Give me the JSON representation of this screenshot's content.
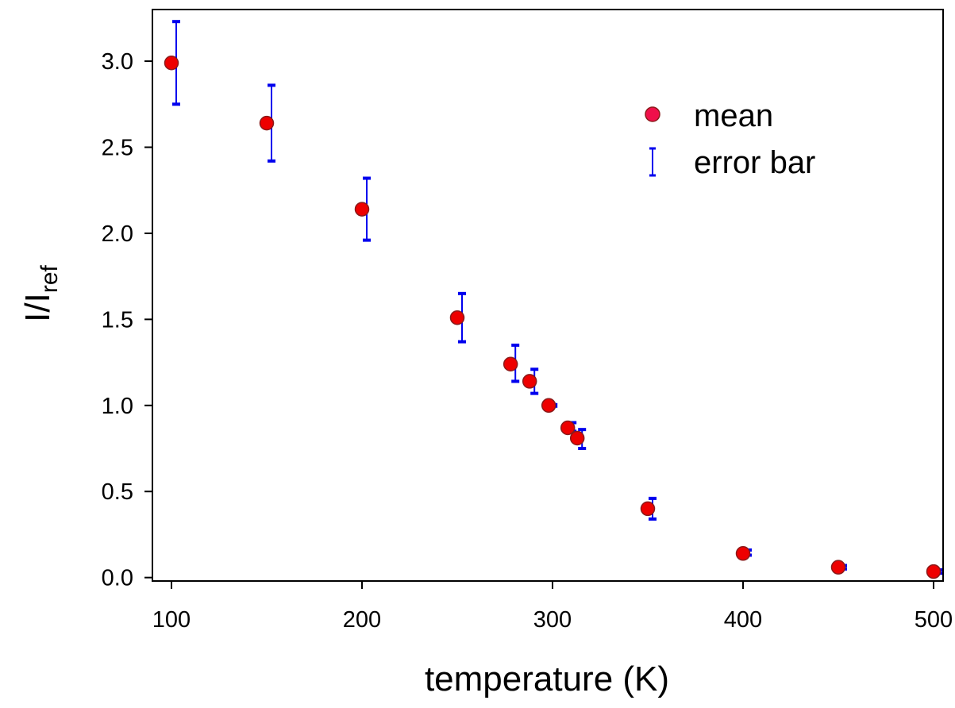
{
  "chart_data": {
    "type": "scatter",
    "xlabel": "temperature (K)",
    "ylabel": {
      "main": "I/I",
      "subscript": "ref"
    },
    "xlim": [
      90,
      505
    ],
    "ylim": [
      -0.02,
      3.3
    ],
    "x_ticks": [
      {
        "value": 100,
        "label": "100"
      },
      {
        "value": 200,
        "label": "200"
      },
      {
        "value": 300,
        "label": "300"
      },
      {
        "value": 400,
        "label": "400"
      },
      {
        "value": 500,
        "label": "500"
      }
    ],
    "y_ticks": [
      {
        "value": 0.0,
        "label": "0.0"
      },
      {
        "value": 0.5,
        "label": "0.5"
      },
      {
        "value": 1.0,
        "label": "1.0"
      },
      {
        "value": 1.5,
        "label": "1.5"
      },
      {
        "value": 2.0,
        "label": "2.0"
      },
      {
        "value": 2.5,
        "label": "2.5"
      },
      {
        "value": 3.0,
        "label": "3.0"
      }
    ],
    "grid": false,
    "legend": {
      "position": "top-right",
      "entries": [
        {
          "label": "mean",
          "marker": "circle"
        },
        {
          "label": "error bar",
          "marker": "errorbar"
        }
      ]
    },
    "series": [
      {
        "name": "mean",
        "color": "#ee0000",
        "edge_color": "#8b1a1a",
        "points": [
          {
            "x": 100,
            "y": 2.99
          },
          {
            "x": 150,
            "y": 2.64
          },
          {
            "x": 200,
            "y": 2.14
          },
          {
            "x": 250,
            "y": 1.51
          },
          {
            "x": 278,
            "y": 1.24
          },
          {
            "x": 288,
            "y": 1.14
          },
          {
            "x": 298,
            "y": 1.0
          },
          {
            "x": 308,
            "y": 0.87
          },
          {
            "x": 313,
            "y": 0.81
          },
          {
            "x": 350,
            "y": 0.4
          },
          {
            "x": 400,
            "y": 0.14
          },
          {
            "x": 450,
            "y": 0.06
          },
          {
            "x": 500,
            "y": 0.035
          }
        ]
      },
      {
        "name": "error bar",
        "color": "#0000ee",
        "bars": [
          {
            "x": 100,
            "low": 2.75,
            "high": 3.23
          },
          {
            "x": 150,
            "low": 2.42,
            "high": 2.86
          },
          {
            "x": 200,
            "low": 1.96,
            "high": 2.32
          },
          {
            "x": 250,
            "low": 1.37,
            "high": 1.65
          },
          {
            "x": 278,
            "low": 1.14,
            "high": 1.35
          },
          {
            "x": 288,
            "low": 1.07,
            "high": 1.21
          },
          {
            "x": 298,
            "low": 1.0,
            "high": 1.0
          },
          {
            "x": 308,
            "low": 0.85,
            "high": 0.9
          },
          {
            "x": 313,
            "low": 0.75,
            "high": 0.86
          },
          {
            "x": 350,
            "low": 0.34,
            "high": 0.46
          },
          {
            "x": 400,
            "low": 0.13,
            "high": 0.16
          },
          {
            "x": 450,
            "low": 0.05,
            "high": 0.07
          },
          {
            "x": 500,
            "low": 0.025,
            "high": 0.045
          }
        ]
      }
    ]
  }
}
